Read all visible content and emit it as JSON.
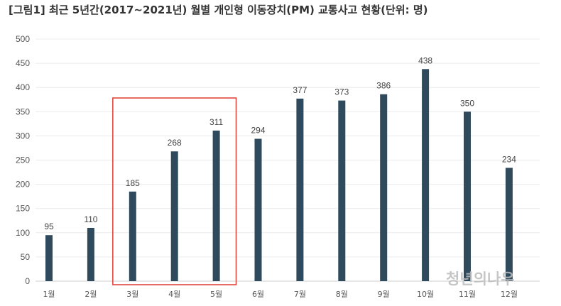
{
  "chart_data": {
    "type": "bar",
    "title": "[그림1] 최근 5년간(2017~2021년) 월별 개인형 이동장치(PM) 교통사고 현황(단위: 명)",
    "categories": [
      "1월",
      "2월",
      "3월",
      "4월",
      "5월",
      "6월",
      "7월",
      "8월",
      "9월",
      "10월",
      "11월",
      "12월"
    ],
    "values": [
      95,
      110,
      185,
      268,
      311,
      294,
      377,
      373,
      386,
      438,
      350,
      234
    ],
    "ylim": [
      0,
      500
    ],
    "yticks": [
      0,
      50,
      100,
      150,
      200,
      250,
      300,
      350,
      400,
      450,
      500
    ],
    "xlabel": "",
    "ylabel": "",
    "grid": true,
    "bar_color": "#2e4a5c",
    "highlight": {
      "categories": [
        "3월",
        "4월",
        "5월"
      ],
      "color": "#e0473f"
    }
  },
  "watermark": "청년의나우"
}
